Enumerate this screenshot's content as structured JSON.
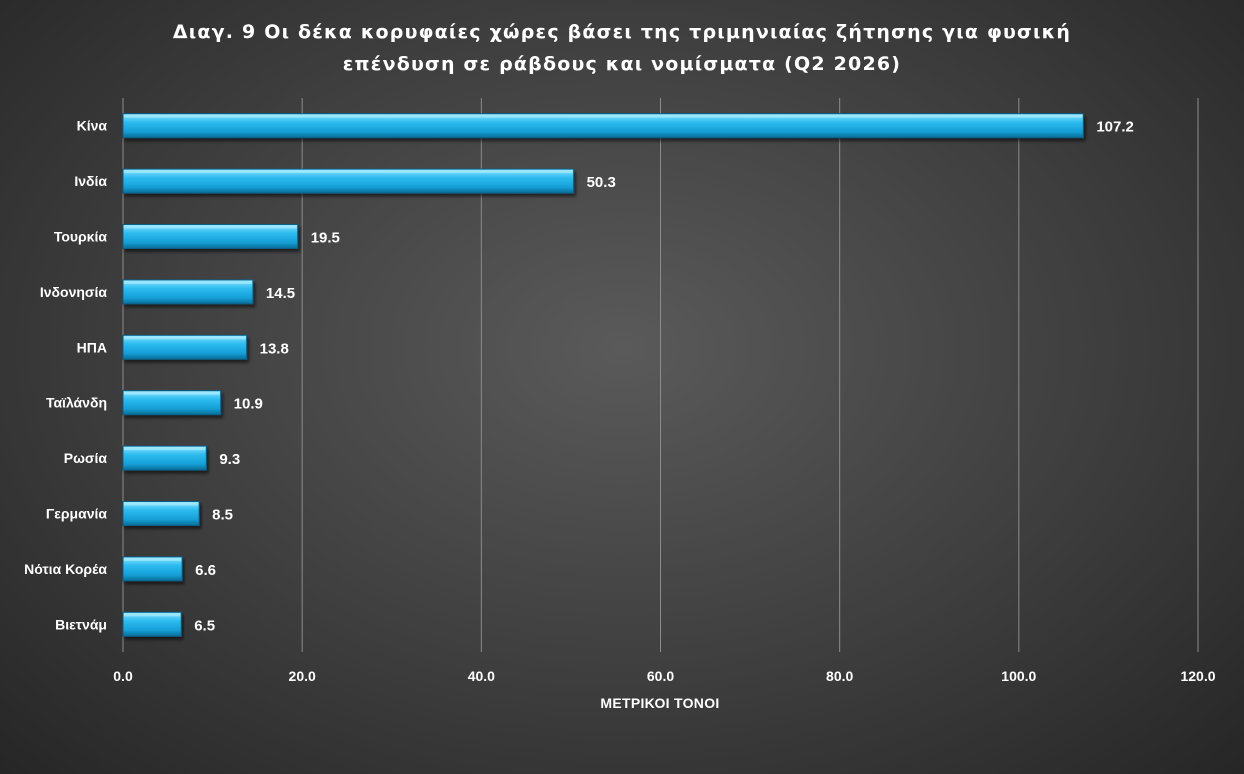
{
  "chart_data": {
    "type": "bar",
    "orientation": "horizontal",
    "title_lines": [
      "Διαγ. 9  Οι δέκα κορυφαίες χώρες βάσει της τριμηνιαίας ζήτησης για φυσική",
      "επένδυση σε ράβδους και νομίσματα (Q2 2026)"
    ],
    "xlabel": "ΜΕΤΡΙΚΟΙ ΤΟΝΟΙ",
    "ylabel": "",
    "categories": [
      "Κίνα",
      "Ινδία",
      "Τουρκία",
      "Ινδονησία",
      "ΗΠΑ",
      "Ταϊλάνδη",
      "Ρωσία",
      "Γερμανία",
      "Νότια Κορέα",
      "Βιετνάμ"
    ],
    "values": [
      107.2,
      50.3,
      19.5,
      14.5,
      13.8,
      10.9,
      9.3,
      8.5,
      6.6,
      6.5
    ],
    "value_labels": [
      "107.2",
      "50.3",
      "19.5",
      "14.5",
      "13.8",
      "10.9",
      "9.3",
      "8.5",
      "6.6",
      "6.5"
    ],
    "xlim": [
      0,
      120
    ],
    "x_ticks": [
      "0.0",
      "20.0",
      "40.0",
      "60.0",
      "80.0",
      "100.0",
      "120.0"
    ],
    "grid": "vertical",
    "legend": "none",
    "colors": {
      "bar_top": "#7fe0ff",
      "bar_mid": "#23b5ec",
      "bar_bottom": "#0b6f9a",
      "background": "#3e3e3e",
      "text": "#ffffff"
    }
  }
}
